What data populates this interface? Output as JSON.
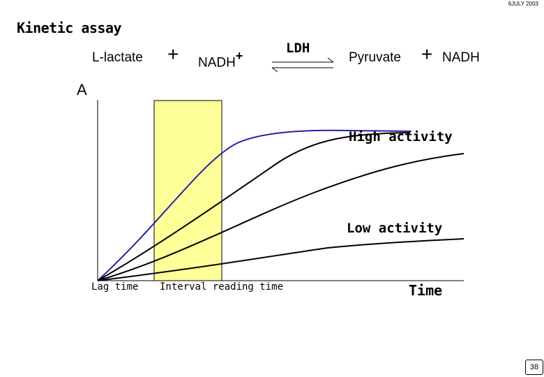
{
  "header": {
    "date": "6JULY 2003"
  },
  "title": "Kinetic assay",
  "reaction": {
    "substrate": "L-lactate",
    "plus_1": "+",
    "cofactor": "NADH",
    "cofactor_charge": "+",
    "enzyme": "LDH",
    "product": "Pyruvate",
    "plus_2": "+",
    "product_cofactor": "NADH"
  },
  "graph": {
    "y_axis_label": "A",
    "x_axis_label": "Time",
    "lag_label": "Lag time",
    "interval_label": "Interval reading time",
    "high_label": "High activity",
    "low_label": "Low activity",
    "colors": {
      "highlight": "#ffff99",
      "blue_curve": "#2222aa",
      "curves": "#000000"
    }
  },
  "footer": {
    "page_number": "38"
  }
}
